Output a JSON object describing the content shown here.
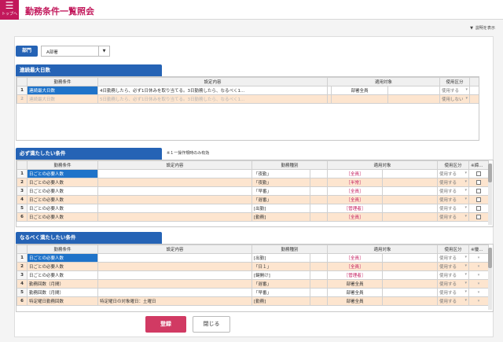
{
  "header": {
    "menu_icon": "hamburger-icon",
    "menu_label": "トップへ",
    "title": "勤務条件一覧照会"
  },
  "toolbar": {
    "desc_toggle": "説明を表示"
  },
  "department": {
    "label": "部門",
    "value": "A部署"
  },
  "section1": {
    "title": "連続最大日数",
    "headers": [
      "",
      "勤務条件",
      "設定内容",
      "",
      "",
      "適用対象",
      "",
      "使用区分",
      ""
    ],
    "rows": [
      {
        "num": "1",
        "cond": "連続最大日数",
        "content": "4日勤務したら、必ず1日休みを取り当てる。3日勤務したら、なるべく1…",
        "target": "部署全員",
        "use": "使用する"
      },
      {
        "num": "2",
        "cond": "連続最大日数",
        "content": "5日勤務したら、必ず1日休みを取り当てる。3日勤務したら、なるべく1…",
        "target": "",
        "use": "使用しない"
      }
    ]
  },
  "section2": {
    "title": "必ず満たしたい条件",
    "note": "※１一操作規時のみ有効",
    "headers": [
      "",
      "勤務条件",
      "設定内容",
      "勤務種別",
      "",
      "適用対象",
      "",
      "使用区分",
      "※締める"
    ],
    "rows": [
      {
        "num": "1",
        "cond": "日ごとの必要人数",
        "kind": "「夜勤」",
        "target": "［全員］",
        "use": "使用する"
      },
      {
        "num": "2",
        "cond": "日ごとの必要人数",
        "kind": "「夜勤」",
        "target": "［半常］",
        "use": "使用する"
      },
      {
        "num": "3",
        "cond": "日ごとの必要人数",
        "kind": "「早番」",
        "target": "［全員］",
        "use": "使用する"
      },
      {
        "num": "4",
        "cond": "日ごとの必要人数",
        "kind": "「遅番」",
        "target": "［全員］",
        "use": "使用する"
      },
      {
        "num": "5",
        "cond": "日ごとの必要人数",
        "kind": "[出勤]",
        "target": "［管理者］",
        "use": "使用する"
      },
      {
        "num": "6",
        "cond": "日ごとの必要人数",
        "kind": "[勤務]",
        "target": "［全員］",
        "use": "使用する"
      }
    ]
  },
  "section3": {
    "title": "なるべく満たしたい条件",
    "headers": [
      "",
      "勤務条件",
      "設定内容",
      "勤務種別",
      "",
      "適用対象",
      "",
      "使用区分",
      "※優先順位"
    ],
    "rows": [
      {
        "num": "1",
        "cond": "日ごとの必要人数",
        "content": "",
        "kind": "[出勤]",
        "target": "［全員］",
        "use": "使用する"
      },
      {
        "num": "2",
        "cond": "日ごとの必要人数",
        "content": "",
        "kind": "「日１」",
        "target": "［全員］",
        "use": "使用する"
      },
      {
        "num": "3",
        "cond": "日ごとの必要人数",
        "content": "",
        "kind": "[鍵開け]",
        "target": "［管理者］",
        "use": "使用する"
      },
      {
        "num": "4",
        "cond": "勤務回数（月間）",
        "content": "",
        "kind": "「遅番」",
        "target": "部署全員",
        "use": "使用する"
      },
      {
        "num": "5",
        "cond": "勤務回数（月間）",
        "content": "",
        "kind": "「早番」",
        "target": "部署全員",
        "use": "使用する"
      },
      {
        "num": "6",
        "cond": "特定曜日勤務回数",
        "content": "特定曜日の対象曜日：土曜日",
        "kind": "[勤務]",
        "target": "部署全員",
        "use": "使用する"
      }
    ]
  },
  "footer": {
    "register": "登録",
    "close": "閉じる"
  }
}
